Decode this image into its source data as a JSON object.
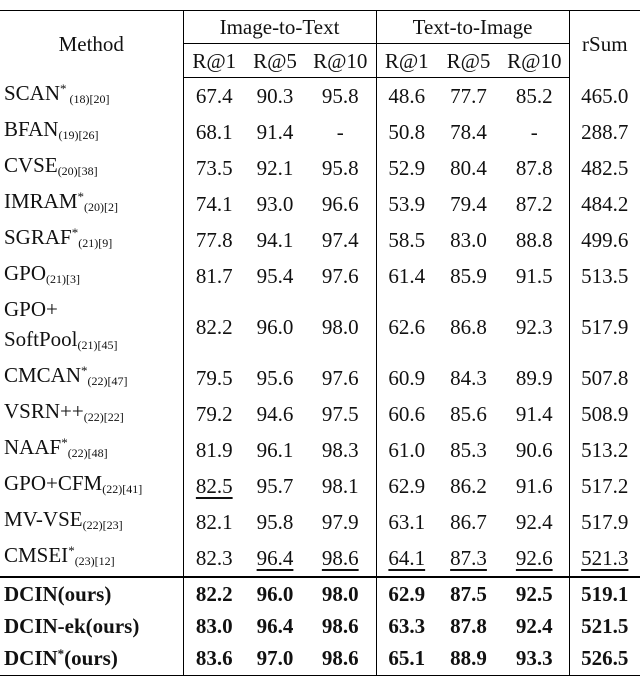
{
  "table": {
    "header": {
      "method": "Method",
      "groups": [
        "Image-to-Text",
        "Text-to-Image"
      ],
      "metrics": [
        "R@1",
        "R@5",
        "R@10",
        "R@1",
        "R@5",
        "R@10"
      ],
      "rsum": "rSum"
    },
    "rows": [
      {
        "name": "SCAN",
        "mark": "*",
        "sub": " (18)[20]",
        "cells": [
          "67.4",
          "90.3",
          "95.8",
          "48.6",
          "77.7",
          "85.2",
          "465.0"
        ]
      },
      {
        "name": "BFAN",
        "sub": "(19)[26]",
        "cells": [
          "68.1",
          "91.4",
          "-",
          "50.8",
          "78.4",
          "-",
          "288.7"
        ]
      },
      {
        "name": "CVSE",
        "sub": "(20)[38]",
        "cells": [
          "73.5",
          "92.1",
          "95.8",
          "52.9",
          "80.4",
          "87.8",
          "482.5"
        ]
      },
      {
        "name": "IMRAM",
        "mark": "*",
        "sub": "(20)[2]",
        "cells": [
          "74.1",
          "93.0",
          "96.6",
          "53.9",
          "79.4",
          "87.2",
          "484.2"
        ]
      },
      {
        "name": "SGRAF",
        "mark": "*",
        "sub": "(21)[9]",
        "cells": [
          "77.8",
          "94.1",
          "97.4",
          "58.5",
          "83.0",
          "88.8",
          "499.6"
        ]
      },
      {
        "name": "GPO",
        "sub": "(21)[3]",
        "cells": [
          "81.7",
          "95.4",
          "97.6",
          "61.4",
          "85.9",
          "91.5",
          "513.5"
        ]
      },
      {
        "name": "GPO+\nSoftPool",
        "sub": "(21)[45]",
        "cells": [
          "82.2",
          "96.0",
          "98.0",
          "62.6",
          "86.8",
          "92.3",
          "517.9"
        ]
      },
      {
        "name": "CMCAN",
        "mark": "*",
        "sub": "(22)[47]",
        "cells": [
          "79.5",
          "95.6",
          "97.6",
          "60.9",
          "84.3",
          "89.9",
          "507.8"
        ]
      },
      {
        "name": "VSRN++",
        "sub": "(22)[22]",
        "cells": [
          "79.2",
          "94.6",
          "97.5",
          "60.6",
          "85.6",
          "91.4",
          "508.9"
        ]
      },
      {
        "name": "NAAF",
        "mark": "*",
        "sub": "(22)[48]",
        "cells": [
          "81.9",
          "96.1",
          "98.3",
          "61.0",
          "85.3",
          "90.6",
          "513.2"
        ]
      },
      {
        "name": "GPO+CFM",
        "sub": "(22)[41]",
        "cells": [
          "82.5",
          "95.7",
          "98.1",
          "62.9",
          "86.2",
          "91.6",
          "517.2"
        ],
        "underline": [
          0
        ]
      },
      {
        "name": "MV-VSE",
        "sub": "(22)[23]",
        "cells": [
          "82.1",
          "95.8",
          "97.9",
          "63.1",
          "86.7",
          "92.4",
          "517.9"
        ]
      },
      {
        "name": "CMSEI",
        "mark": "*",
        "sub": "(23)[12]",
        "cells": [
          "82.3",
          "96.4",
          "98.6",
          "64.1",
          "87.3",
          "92.6",
          "521.3"
        ],
        "underline": [
          1,
          2,
          3,
          4,
          5,
          6
        ]
      },
      {
        "name": "DCIN(ours)",
        "cells": [
          "82.2",
          "96.0",
          "98.0",
          "62.9",
          "87.5",
          "92.5",
          "519.1"
        ],
        "bold": true
      },
      {
        "name": "DCIN-ek(ours)",
        "cells": [
          "83.0",
          "96.4",
          "98.6",
          "63.3",
          "87.8",
          "92.4",
          "521.5"
        ],
        "bold": true
      },
      {
        "name": "DCIN",
        "mark": "*",
        "tail": "(ours)",
        "cells": [
          "83.6",
          "97.0",
          "98.6",
          "65.1",
          "88.9",
          "93.3",
          "526.5"
        ],
        "bold": true
      }
    ]
  }
}
